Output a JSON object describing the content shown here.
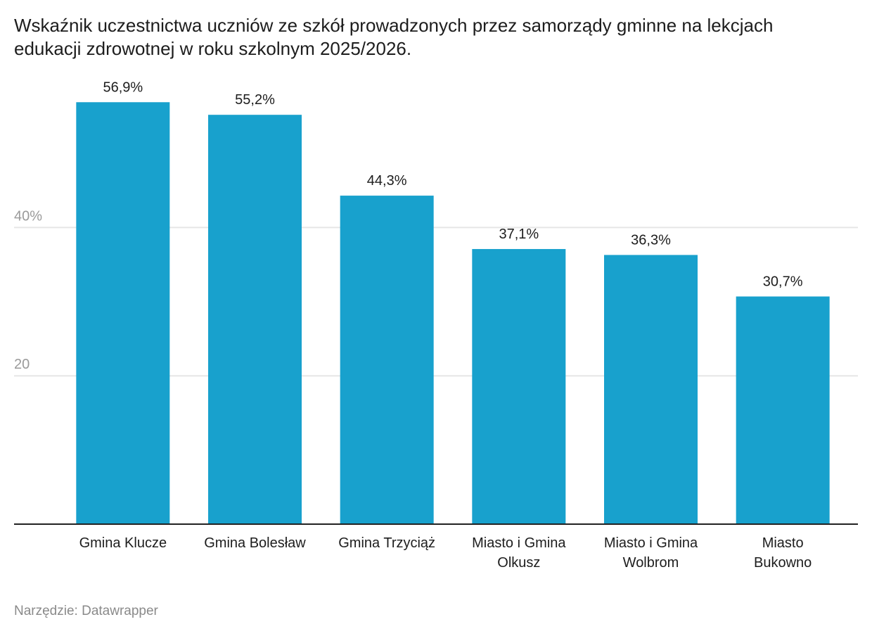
{
  "title_lines": [
    "Wskaźnik uczestnictwa uczniów ze szkół prowadzonych przez samorządy gminne na lekcjach",
    "edukacji zdrowotnej w roku szkolnym 2025/2026."
  ],
  "source": "Narzędzie: Datawrapper",
  "colors": {
    "bar": "#18a1cd",
    "grid": "#e6e6e6",
    "tick": "#9a9a9a",
    "axis": "#222222"
  },
  "chart_data": {
    "type": "bar",
    "title": "Wskaźnik uczestnictwa uczniów ze szkół prowadzonych przez samorządy gminne na lekcjach edukacji zdrowotnej w roku szkolnym 2025/2026.",
    "categories": [
      [
        "Gmina Klucze"
      ],
      [
        "Gmina Bolesław"
      ],
      [
        "Gmina Trzyciąż"
      ],
      [
        "Miasto i Gmina",
        "Olkusz"
      ],
      [
        "Miasto i Gmina",
        "Wolbrom"
      ],
      [
        "Miasto",
        "Bukowno"
      ]
    ],
    "values": [
      56.9,
      55.2,
      44.3,
      37.1,
      36.3,
      30.7
    ],
    "value_labels": [
      "56,9%",
      "55,2%",
      "44,3%",
      "37,1%",
      "36,3%",
      "30,7%"
    ],
    "yticks": [
      {
        "value": 20,
        "label": "20"
      },
      {
        "value": 40,
        "label": "40%"
      }
    ],
    "ylim": [
      0,
      60
    ],
    "grid": true,
    "xlabel": "",
    "ylabel": ""
  }
}
